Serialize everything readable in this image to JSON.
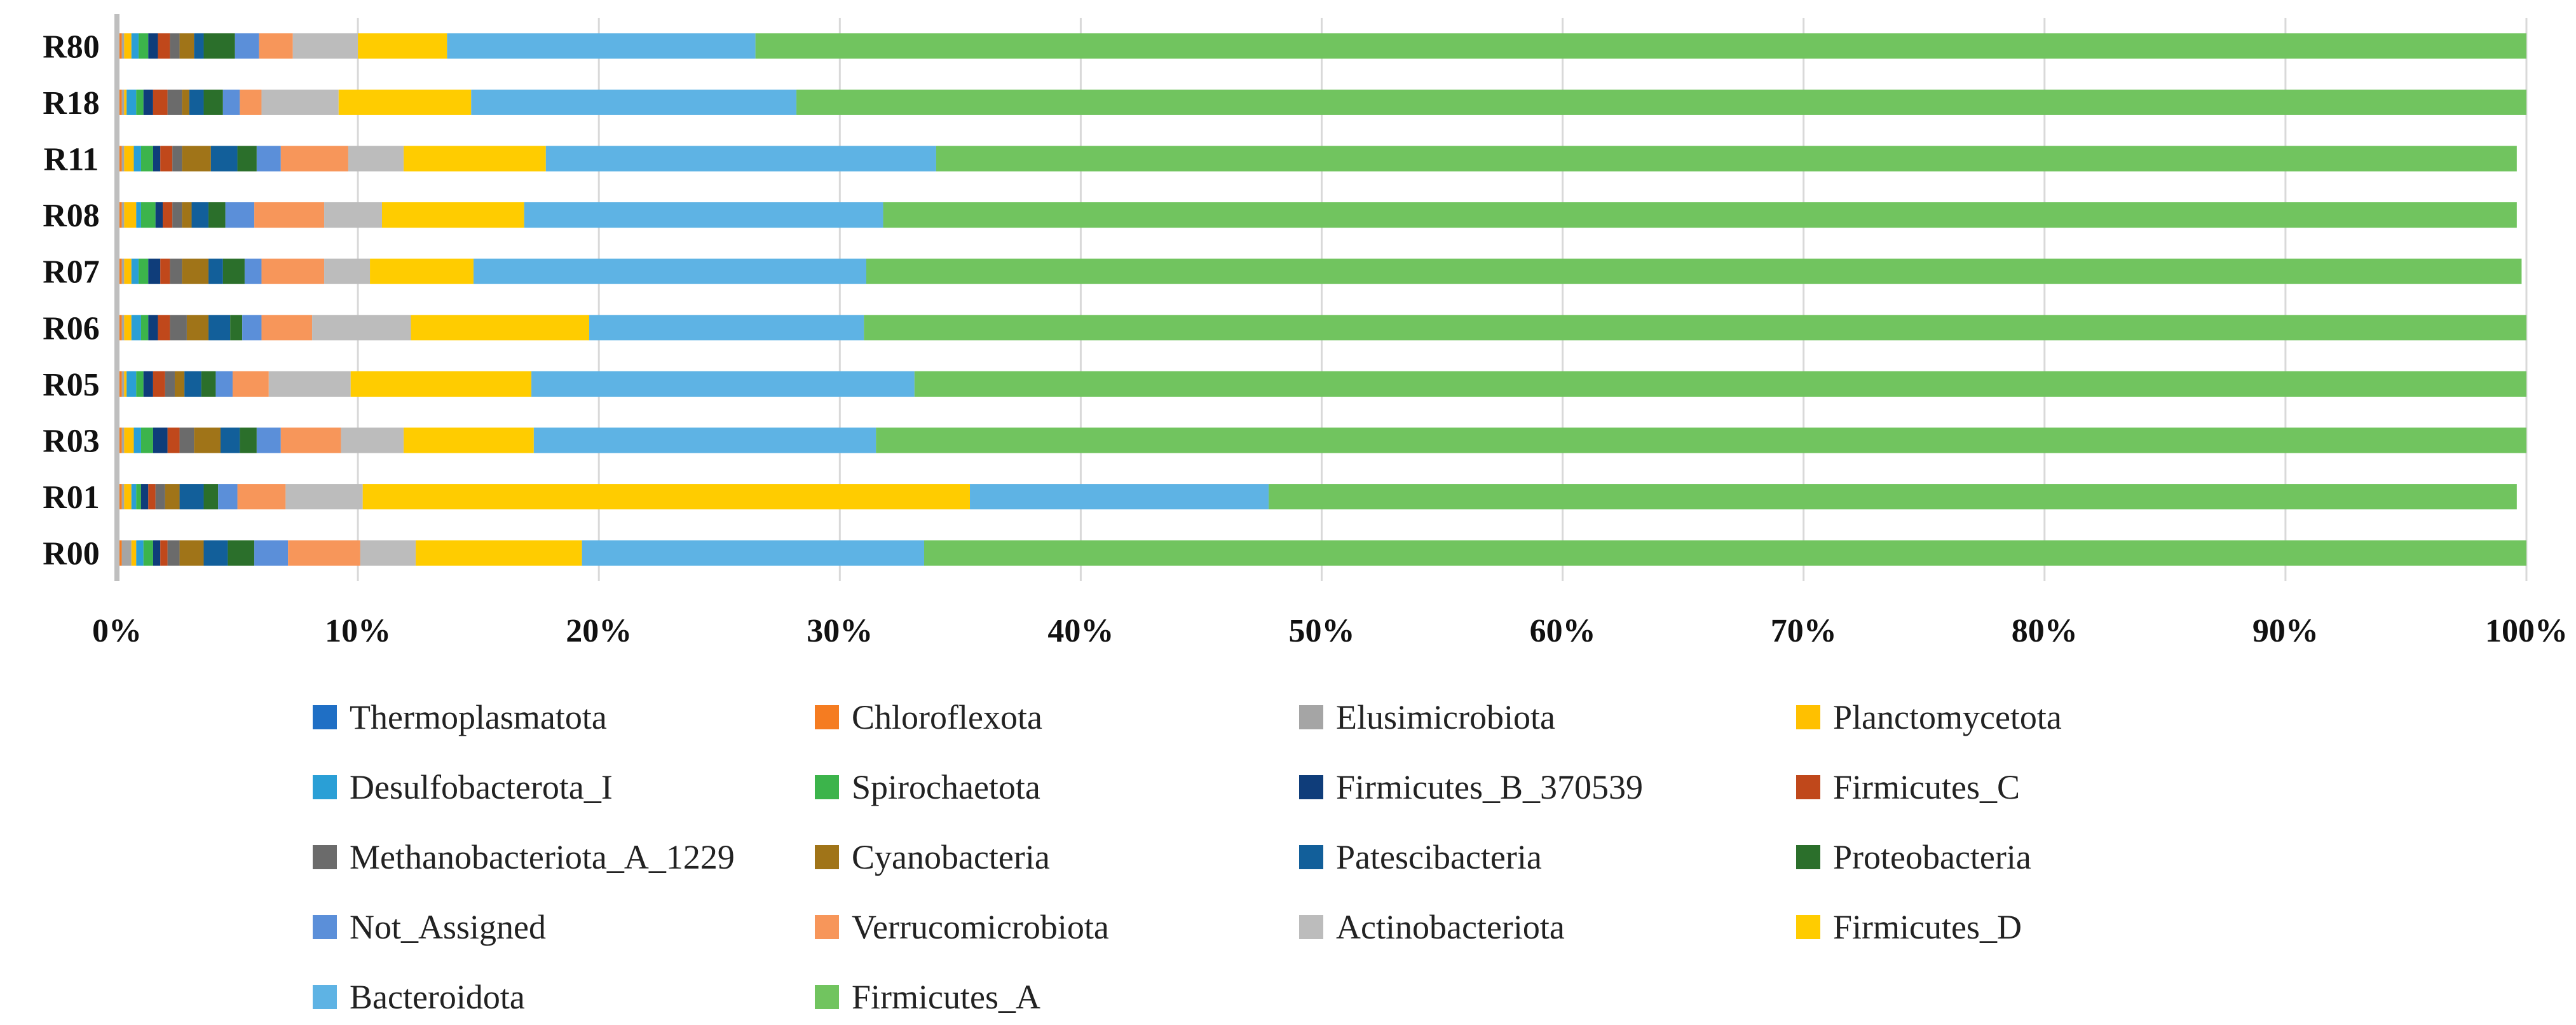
{
  "chart_data": {
    "type": "bar",
    "orientation": "horizontal",
    "stacked": true,
    "percent_stacked": true,
    "title": "",
    "xlabel": "",
    "ylabel": "",
    "xlim": [
      0,
      100
    ],
    "x_ticks": [
      "0%",
      "10%",
      "20%",
      "30%",
      "40%",
      "50%",
      "60%",
      "70%",
      "80%",
      "90%",
      "100%"
    ],
    "grid": "vertical",
    "legend_position": "bottom",
    "categories": [
      "R80",
      "R18",
      "R11",
      "R08",
      "R07",
      "R06",
      "R05",
      "R03",
      "R01",
      "R00"
    ],
    "series": [
      {
        "name": "Thermoplasmatota",
        "color": "#1f6fc5",
        "values": [
          0.1,
          0.1,
          0.1,
          0.1,
          0.1,
          0.1,
          0.1,
          0.1,
          0.1,
          0.1
        ]
      },
      {
        "name": "Chloroflexota",
        "color": "#f57c21",
        "values": [
          0.1,
          0.1,
          0.1,
          0.1,
          0.1,
          0.1,
          0.1,
          0.1,
          0.1,
          0.1
        ]
      },
      {
        "name": "Elusimicrobiota",
        "color": "#a5a5a5",
        "values": [
          0.1,
          0.1,
          0.1,
          0.1,
          0.1,
          0.1,
          0.1,
          0.1,
          0.1,
          0.4
        ]
      },
      {
        "name": "Planctomycetota",
        "color": "#ffc000",
        "values": [
          0.3,
          0.1,
          0.4,
          0.5,
          0.3,
          0.3,
          0.1,
          0.4,
          0.3,
          0.2
        ]
      },
      {
        "name": "Desulfobacterota_I",
        "color": "#2a9fd6",
        "values": [
          0.3,
          0.4,
          0.3,
          0.2,
          0.3,
          0.4,
          0.4,
          0.3,
          0.2,
          0.3
        ]
      },
      {
        "name": "Spirochaetota",
        "color": "#3cb44b",
        "values": [
          0.4,
          0.3,
          0.5,
          0.6,
          0.4,
          0.3,
          0.3,
          0.5,
          0.2,
          0.4
        ]
      },
      {
        "name": "Firmicutes_B_370539",
        "color": "#0f3d7a",
        "values": [
          0.4,
          0.4,
          0.3,
          0.3,
          0.5,
          0.4,
          0.4,
          0.6,
          0.3,
          0.3
        ]
      },
      {
        "name": "Firmicutes_C",
        "color": "#c0481b",
        "values": [
          0.5,
          0.6,
          0.5,
          0.4,
          0.4,
          0.5,
          0.5,
          0.5,
          0.3,
          0.3
        ]
      },
      {
        "name": "Methanobacteriota_A_1229",
        "color": "#6b6b6b",
        "values": [
          0.4,
          0.6,
          0.4,
          0.4,
          0.5,
          0.7,
          0.4,
          0.6,
          0.4,
          0.5
        ]
      },
      {
        "name": "Cyanobacteria",
        "color": "#a07418",
        "values": [
          0.6,
          0.3,
          1.2,
          0.4,
          1.1,
          0.9,
          0.4,
          1.1,
          0.6,
          1.0
        ]
      },
      {
        "name": "Patescibacteria",
        "color": "#125f9a",
        "values": [
          0.4,
          0.6,
          1.1,
          0.7,
          0.6,
          0.9,
          0.7,
          0.8,
          1.0,
          1.0
        ]
      },
      {
        "name": "Proteobacteria",
        "color": "#2b6f2b",
        "values": [
          1.3,
          0.8,
          0.8,
          0.7,
          0.9,
          0.5,
          0.6,
          0.7,
          0.6,
          1.1
        ]
      },
      {
        "name": "Not_Assigned",
        "color": "#5b8fd9",
        "values": [
          1.0,
          0.7,
          1.0,
          1.2,
          0.7,
          0.8,
          0.7,
          1.0,
          0.8,
          1.4
        ]
      },
      {
        "name": "Verrucomicrobiota",
        "color": "#f7965a",
        "values": [
          1.4,
          0.9,
          2.8,
          2.9,
          2.6,
          2.1,
          1.5,
          2.5,
          2.0,
          3.0
        ]
      },
      {
        "name": "Actinobacteriota",
        "color": "#bcbcbc",
        "values": [
          2.7,
          3.2,
          2.3,
          2.4,
          1.9,
          4.1,
          3.4,
          2.6,
          3.2,
          2.3
        ]
      },
      {
        "name": "Firmicutes_D",
        "color": "#ffcc00",
        "values": [
          3.7,
          5.5,
          5.9,
          5.9,
          4.3,
          7.4,
          7.5,
          5.4,
          25.2,
          6.9
        ]
      },
      {
        "name": "Bacteroidota",
        "color": "#5eb3e4",
        "values": [
          12.8,
          13.5,
          16.2,
          14.9,
          16.3,
          11.4,
          15.9,
          14.2,
          12.4,
          14.2
        ]
      },
      {
        "name": "Firmicutes_A",
        "color": "#71c45f",
        "values": [
          73.5,
          71.8,
          65.6,
          67.8,
          68.7,
          69.0,
          66.9,
          68.5,
          51.8,
          66.5
        ]
      }
    ],
    "legend_order": [
      "Thermoplasmatota",
      "Chloroflexota",
      "Elusimicrobiota",
      "Planctomycetota",
      "Desulfobacterota_I",
      "Spirochaetota",
      "Firmicutes_B_370539",
      "Firmicutes_C",
      "Methanobacteriota_A_1229",
      "Cyanobacteria",
      "Patescibacteria",
      "Proteobacteria",
      "Not_Assigned",
      "Verrucomicrobiota",
      "Actinobacteriota",
      "Firmicutes_D",
      "Bacteroidota",
      "Firmicutes_A"
    ]
  }
}
